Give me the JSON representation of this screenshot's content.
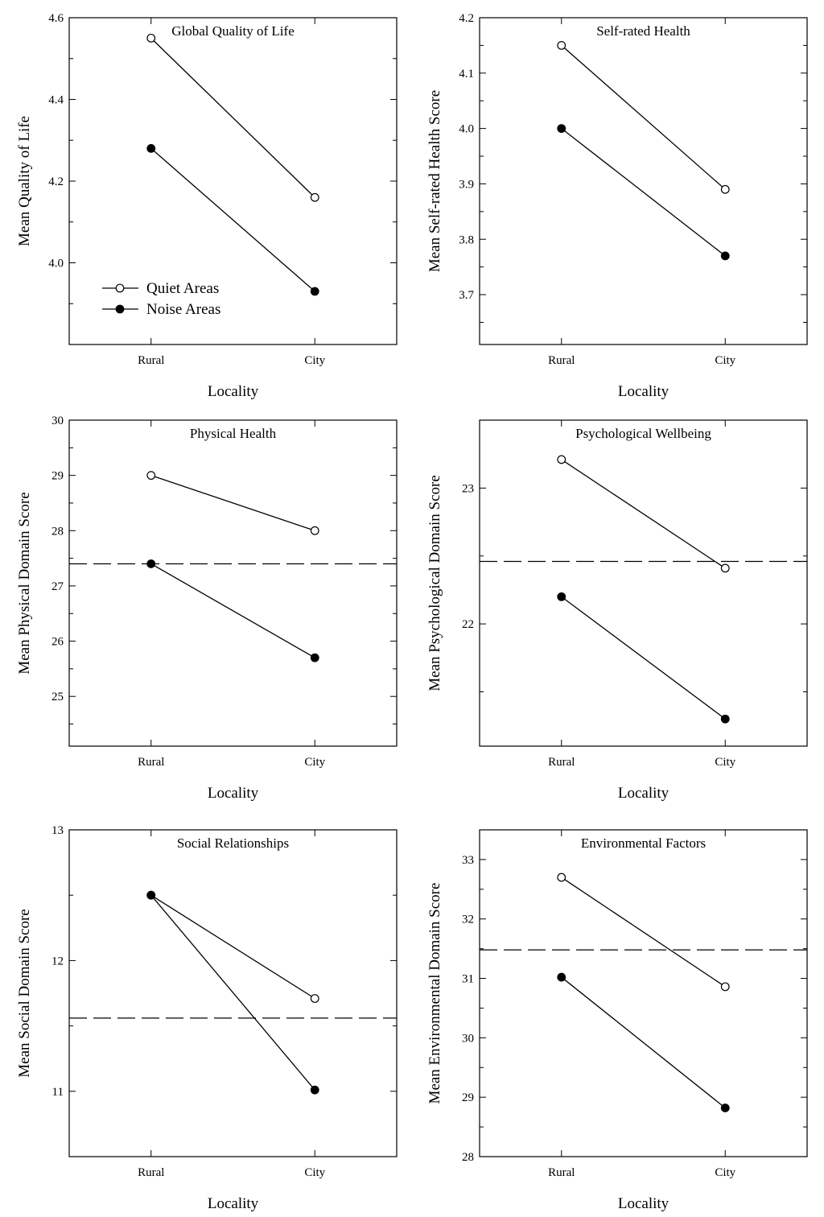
{
  "chart_data": [
    {
      "type": "line",
      "title": "Global Quality of Life",
      "xlabel": "Locality",
      "ylabel": "Mean Quality of Life",
      "categories": [
        "Rural",
        "City"
      ],
      "ylim": [
        3.8,
        4.6
      ],
      "yticks": [
        "4.0",
        "4.2",
        "4.4",
        "4.6"
      ],
      "series": [
        {
          "name": "Quiet Areas",
          "marker": "open",
          "values": [
            4.55,
            4.16
          ]
        },
        {
          "name": "Noise Areas",
          "marker": "filled",
          "values": [
            4.28,
            3.93
          ]
        }
      ],
      "legend": "bottom-left",
      "reference_line": null
    },
    {
      "type": "line",
      "title": "Self-rated Health",
      "xlabel": "Locality",
      "ylabel": "Mean Self-rated Health Score",
      "categories": [
        "Rural",
        "City"
      ],
      "ylim": [
        3.61,
        4.2
      ],
      "yticks": [
        "3.7",
        "3.8",
        "3.9",
        "4.0",
        "4.1",
        "4.2"
      ],
      "series": [
        {
          "values": [
            4.15,
            3.89
          ],
          "marker": "open"
        },
        {
          "values": [
            4.0,
            3.77
          ],
          "marker": "filled"
        }
      ],
      "reference_line": null
    },
    {
      "type": "line",
      "title": "Physical Health",
      "xlabel": "Locality",
      "ylabel": "Mean Physical Domain Score",
      "categories": [
        "Rural",
        "City"
      ],
      "ylim": [
        24.1,
        30
      ],
      "yticks": [
        "25",
        "26",
        "27",
        "28",
        "29",
        "30"
      ],
      "series": [
        {
          "values": [
            29.0,
            28.0
          ],
          "marker": "open"
        },
        {
          "values": [
            27.4,
            25.7
          ],
          "marker": "filled"
        }
      ],
      "reference_line": 27.4
    },
    {
      "type": "line",
      "title": "Psychological Wellbeing",
      "xlabel": "Locality",
      "ylabel": "Mean Psychological Domain Score",
      "categories": [
        "Rural",
        "City"
      ],
      "ylim": [
        21.1,
        23.5
      ],
      "yticks": [
        "22",
        "23"
      ],
      "series": [
        {
          "values": [
            23.21,
            22.41
          ],
          "marker": "open"
        },
        {
          "values": [
            22.2,
            21.3
          ],
          "marker": "filled"
        }
      ],
      "reference_line": 22.46
    },
    {
      "type": "line",
      "title": "Social Relationships",
      "xlabel": "Locality",
      "ylabel": "Mean Social Domain Score",
      "categories": [
        "Rural",
        "City"
      ],
      "ylim": [
        10.5,
        13
      ],
      "yticks": [
        "11",
        "12",
        "13"
      ],
      "series": [
        {
          "values": [
            12.5,
            11.71
          ],
          "marker": "open"
        },
        {
          "values": [
            12.5,
            11.01
          ],
          "marker": "filled"
        }
      ],
      "reference_line": 11.56
    },
    {
      "type": "line",
      "title": "Environmental Factors",
      "xlabel": "Locality",
      "ylabel": "Mean Environmental Domain Score",
      "categories": [
        "Rural",
        "City"
      ],
      "ylim": [
        28,
        33.5
      ],
      "yticks": [
        "28",
        "29",
        "30",
        "31",
        "32",
        "33"
      ],
      "series": [
        {
          "values": [
            32.7,
            30.86
          ],
          "marker": "open"
        },
        {
          "values": [
            31.02,
            28.82
          ],
          "marker": "filled"
        }
      ],
      "reference_line": 31.48
    }
  ]
}
